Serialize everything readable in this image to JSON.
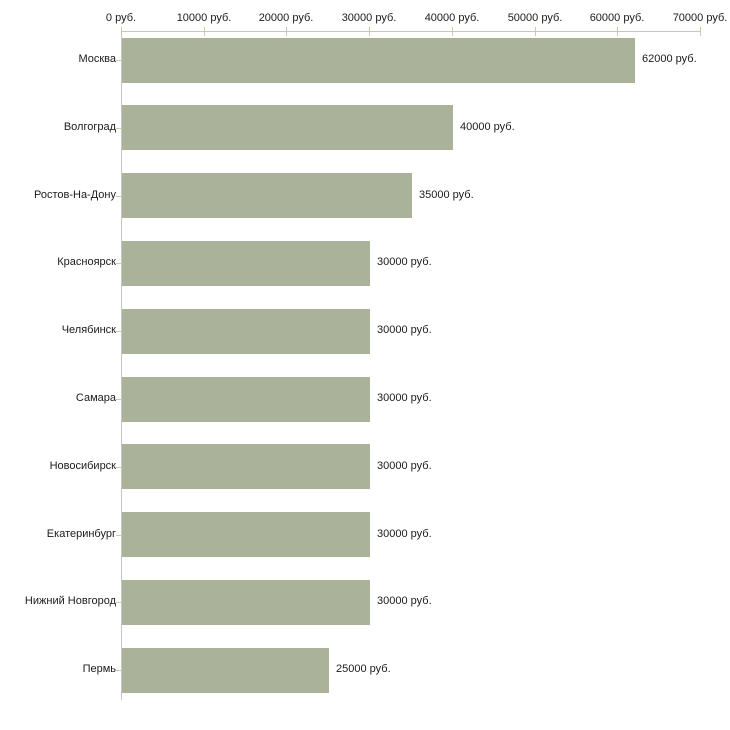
{
  "chart_data": {
    "type": "bar",
    "orientation": "horizontal",
    "title": "",
    "categories": [
      "Москва",
      "Волгоград",
      "Ростов-На-Дону",
      "Красноярск",
      "Челябинск",
      "Самара",
      "Новосибирск",
      "Екатеринбург",
      "Нижний Новгород",
      "Пермь"
    ],
    "values": [
      62000,
      40000,
      35000,
      30000,
      30000,
      30000,
      30000,
      30000,
      30000,
      25000
    ],
    "value_labels": [
      "62000 руб.",
      "40000 руб.",
      "35000 руб.",
      "30000 руб.",
      "30000 руб.",
      "30000 руб.",
      "30000 руб.",
      "30000 руб.",
      "30000 руб.",
      "25000 руб."
    ],
    "unit": "руб.",
    "xlabel": "",
    "ylabel": "",
    "x_axis": {
      "position": "top",
      "range": [
        0,
        70000
      ],
      "ticks": [
        0,
        10000,
        20000,
        30000,
        40000,
        50000,
        60000,
        70000
      ],
      "tick_labels": [
        "0 руб.",
        "10000 руб.",
        "20000 руб.",
        "30000 руб.",
        "40000 руб.",
        "50000 руб.",
        "60000 руб.",
        "70000 руб."
      ]
    },
    "legend": "none",
    "grid": "off",
    "colors": {
      "bar_fill": "#abb29a",
      "axis_line": "#c6c6c6",
      "tick_mark": "#cbcba0",
      "text": "#1b1b1b",
      "background": "#ffffff"
    }
  }
}
